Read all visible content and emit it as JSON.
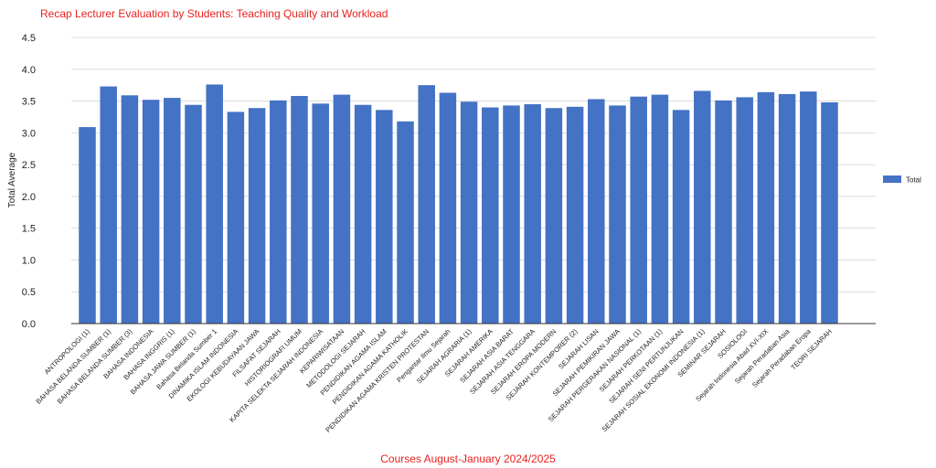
{
  "chart_data": {
    "type": "bar",
    "title": "Recap Lecturer Evaluation by Students: Teaching Quality and Workload",
    "xlabel": "Courses August-January 2024/2025",
    "ylabel": "Total Average",
    "ylim": [
      0,
      4.5
    ],
    "yticks": [
      "0.0",
      "0.5",
      "1.0",
      "1.5",
      "2.0",
      "2.5",
      "3.0",
      "3.5",
      "4.0",
      "4.5"
    ],
    "grid": true,
    "legend_position": "right",
    "title_color": "#e8211d",
    "xlabel_color": "#e8211d",
    "bar_color": "#4472c4",
    "categories": [
      "ANTROPOLOGI (1)",
      "BAHASA BELANDA SUMBER (1)",
      "BAHASA BELANDA SUMBER (3)",
      "BAHASA INDONESIA",
      "BAHASA INGGRIS (1)",
      "BAHASA JAWA SUMBER (1)",
      "Bahasa Belanda Sumber 1",
      "DINAMIKA ISLAM INDONESIA",
      "EKOLOGI KEBUDAYAAN JAWA",
      "FILSAFAT SEJARAH",
      "HISTORIOGRAFI UMUM",
      "KAPITA SELEKTA SEJARAH INDONESIA",
      "KEPARIWISATAAN",
      "METODOLOGI SEJARAH",
      "PENDIDIKAN AGAMA ISLAM",
      "PENDIDIKAN AGAMA KATHOLIK",
      "PENDIDIKAN AGAMA KRISTEN PROTESTAN",
      "Pengantar Ilmu Sejarah",
      "SEJARAH AGRARIA (1)",
      "SEJARAH AMERIKA",
      "SEJARAH ASIA BARAT",
      "SEJARAH ASIA TENGGARA",
      "SEJARAH EROPA MODERN",
      "SEJARAH KONTEMPORER (2)",
      "SEJARAH LISAN",
      "SEJARAH PEMIKIRAN JAWA",
      "SEJARAH PERGERAKAN NASIONAL (1)",
      "SEJARAH PERKOTAAN (1)",
      "SEJARAH SENI PERTUNJUKAN",
      "SEJARAH SOSIAL EKONOMI INDONESIA (1)",
      "SEMINAR SEJARAH",
      "SOSIOLOGI",
      "Sejarah Indonesia Abad XVI-XIX",
      "Sejarah Peradaban Asia",
      "Sejarah Peradaban Eropa",
      "TEORI SEJARAH"
    ],
    "series": [
      {
        "name": "Total",
        "values": [
          3.09,
          3.73,
          3.59,
          3.52,
          3.55,
          3.44,
          3.76,
          3.33,
          3.39,
          3.51,
          3.58,
          3.46,
          3.6,
          3.44,
          3.36,
          3.18,
          3.75,
          3.63,
          3.49,
          3.4,
          3.43,
          3.45,
          3.39,
          3.41,
          3.53,
          3.43,
          3.57,
          3.6,
          3.36,
          3.66,
          3.51,
          3.56,
          3.64,
          3.61,
          3.65,
          3.48
        ]
      }
    ]
  }
}
